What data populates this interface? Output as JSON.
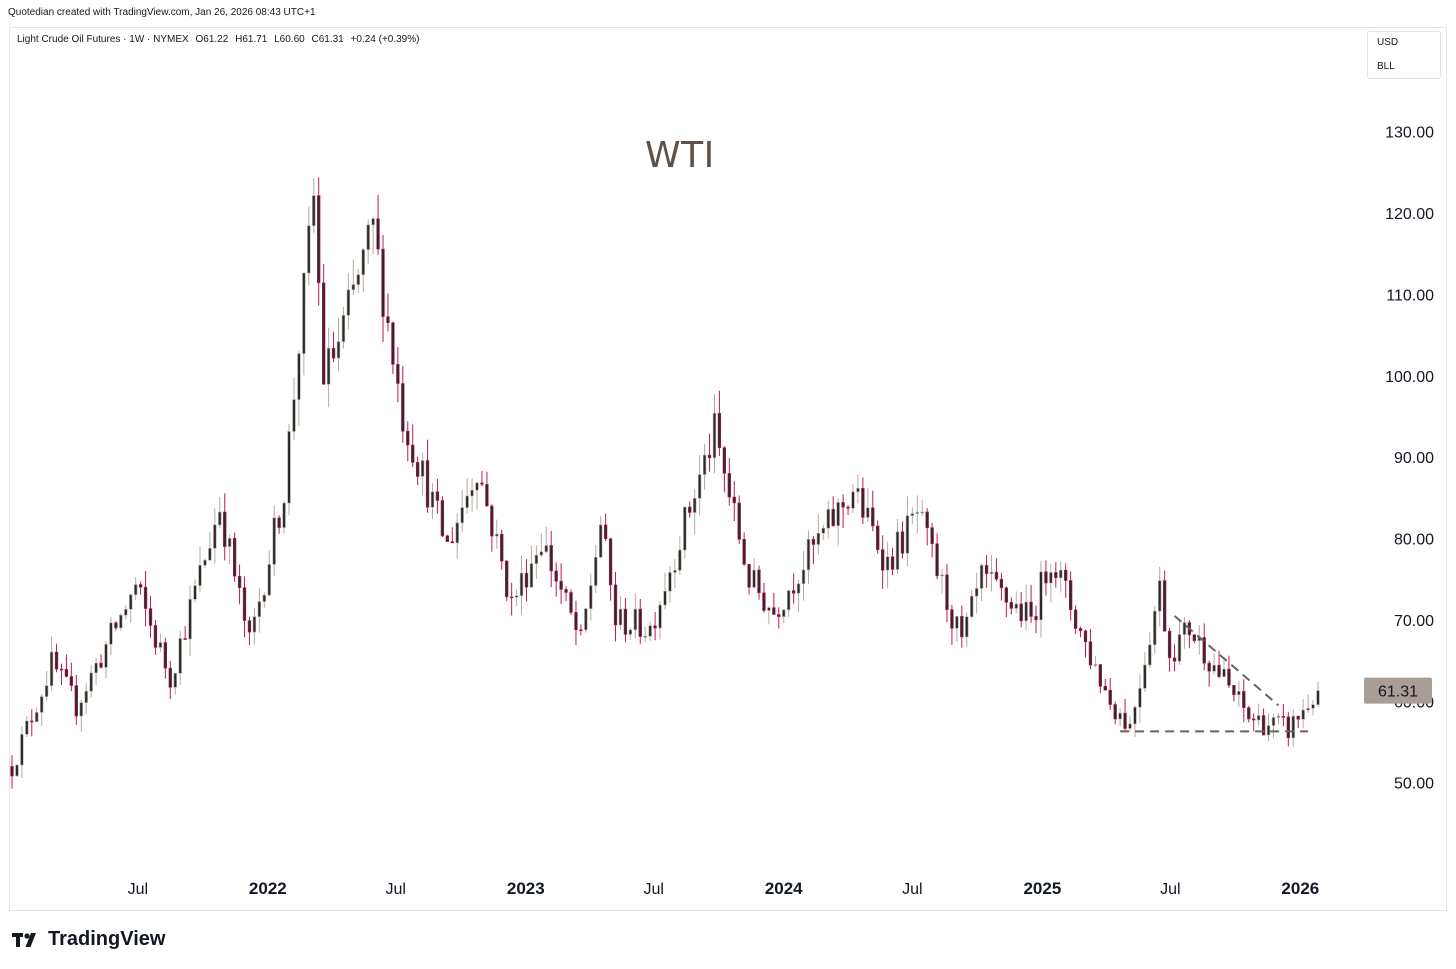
{
  "header": {
    "caption": "Quotedian created with TradingView.com, Jan 26, 2026 08:43 UTC+1"
  },
  "legend": {
    "symbol": "Light Crude Oil Futures · 1W · NYMEX",
    "open": "O61.22",
    "high": "H61.71",
    "low": "L60.60",
    "close": "C61.31",
    "change": "+0.24 (+0.39%)"
  },
  "units": {
    "currency": "USD",
    "unit": "BLL"
  },
  "annotation": {
    "text": "WTI"
  },
  "footer": {
    "brand": "TradingView"
  },
  "colors": {
    "up": "#b4aa9f",
    "down": "#c2185b",
    "body": "#2b2b2b",
    "price_label_bg": "#a89e95",
    "trendline": "#6d6259"
  },
  "chart_data": {
    "type": "candlestick",
    "title": "Light Crude Oil Futures",
    "ylim": [
      40.5,
      134.5
    ],
    "y_ticks": [
      130,
      120,
      110,
      100,
      90,
      80,
      70,
      60,
      50
    ],
    "y_tick_labels": [
      "130.00",
      "120.00",
      "110.00",
      "100.00",
      "90.00",
      "80.00",
      "70.00",
      "60.00",
      "50.00"
    ],
    "x_ticks": [
      {
        "label": "Jul",
        "date": "2021-07-01"
      },
      {
        "label": "2022",
        "date": "2022-01-01",
        "bold": true
      },
      {
        "label": "Jul",
        "date": "2022-07-01"
      },
      {
        "label": "2023",
        "date": "2023-01-01",
        "bold": true
      },
      {
        "label": "Jul",
        "date": "2023-07-01"
      },
      {
        "label": "2024",
        "date": "2024-01-01",
        "bold": true
      },
      {
        "label": "Jul",
        "date": "2024-07-01"
      },
      {
        "label": "2025",
        "date": "2025-01-01",
        "bold": true
      },
      {
        "label": "Jul",
        "date": "2025-07-01"
      },
      {
        "label": "2026",
        "date": "2026-01-01",
        "bold": true
      }
    ],
    "last_price": {
      "value": 61.31,
      "label": "61.31"
    },
    "anchors": [
      [
        "2021-01-04",
        52.0
      ],
      [
        "2021-03-01",
        64.5
      ],
      [
        "2021-04-05",
        59.5
      ],
      [
        "2021-06-28",
        74.0
      ],
      [
        "2021-08-16",
        63.0
      ],
      [
        "2021-10-25",
        84.0
      ],
      [
        "2021-12-06",
        67.0
      ],
      [
        "2022-01-24",
        86.0
      ],
      [
        "2022-03-07",
        122.0
      ],
      [
        "2022-03-21",
        100.0
      ],
      [
        "2022-04-11",
        104.0
      ],
      [
        "2022-05-30",
        118.0
      ],
      [
        "2022-07-11",
        95.0
      ],
      [
        "2022-09-12",
        79.0
      ],
      [
        "2022-10-24",
        89.0
      ],
      [
        "2022-12-12",
        72.0
      ],
      [
        "2023-01-23",
        80.0
      ],
      [
        "2023-03-20",
        67.0
      ],
      [
        "2023-04-17",
        82.0
      ],
      [
        "2023-05-08",
        70.0
      ],
      [
        "2023-06-26",
        69.0
      ],
      [
        "2023-09-25",
        93.0
      ],
      [
        "2023-11-13",
        75.0
      ],
      [
        "2023-12-18",
        71.0
      ],
      [
        "2024-01-29",
        77.0
      ],
      [
        "2024-04-08",
        86.0
      ],
      [
        "2024-05-27",
        77.0
      ],
      [
        "2024-07-08",
        83.0
      ],
      [
        "2024-09-09",
        67.0
      ],
      [
        "2024-10-07",
        75.0
      ],
      [
        "2024-12-16",
        70.0
      ],
      [
        "2025-01-13",
        78.0
      ],
      [
        "2025-03-03",
        67.0
      ],
      [
        "2025-04-07",
        60.0
      ],
      [
        "2025-05-05",
        57.0
      ],
      [
        "2025-06-16",
        74.0
      ],
      [
        "2025-06-30",
        66.0
      ],
      [
        "2025-07-28",
        69.0
      ],
      [
        "2025-10-20",
        58.0
      ],
      [
        "2025-12-15",
        56.5
      ],
      [
        "2026-01-26",
        61.3
      ]
    ],
    "trendlines": [
      {
        "style": "dashed",
        "from": [
          "2025-07-07",
          70.5
        ],
        "to": [
          "2025-12-01",
          59.5
        ]
      },
      {
        "style": "dashed",
        "from": [
          "2025-04-21",
          56.3
        ],
        "to": [
          "2026-01-12",
          56.3
        ]
      }
    ]
  }
}
